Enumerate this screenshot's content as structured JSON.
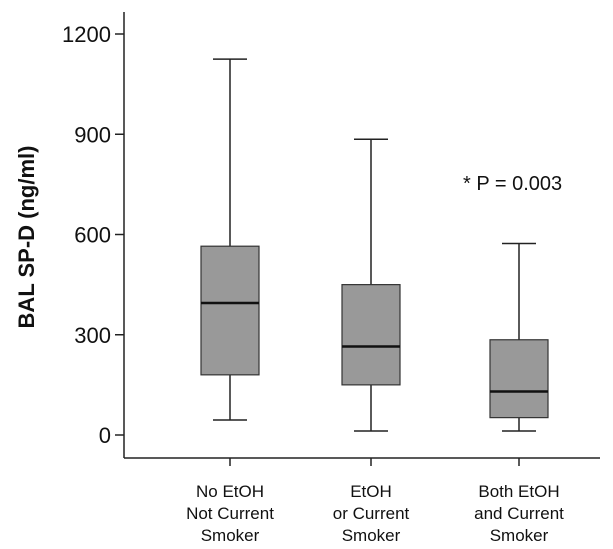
{
  "chart_data": {
    "type": "box",
    "ylabel": "BAL SP-D (ng/ml)",
    "ylim": [
      -60,
      1260
    ],
    "yticks": [
      0,
      300,
      600,
      900,
      1200
    ],
    "ytick_labels": [
      "0",
      "300",
      "600",
      "900",
      "1200"
    ],
    "box_color": "#999999",
    "categories": [
      [
        "No EtOH",
        "Not Current",
        "Smoker"
      ],
      [
        "EtOH",
        "or Current",
        "Smoker"
      ],
      [
        "Both EtOH",
        "and Current",
        "Smoker"
      ]
    ],
    "boxes": [
      {
        "whisker_low": 45,
        "q1": 180,
        "median": 395,
        "q3": 565,
        "whisker_high": 1125
      },
      {
        "whisker_low": 12,
        "q1": 150,
        "median": 265,
        "q3": 450,
        "whisker_high": 885
      },
      {
        "whisker_low": 12,
        "q1": 52,
        "median": 130,
        "q3": 285,
        "whisker_high": 573
      }
    ],
    "annotation": "* P = 0.003",
    "grid": false
  }
}
